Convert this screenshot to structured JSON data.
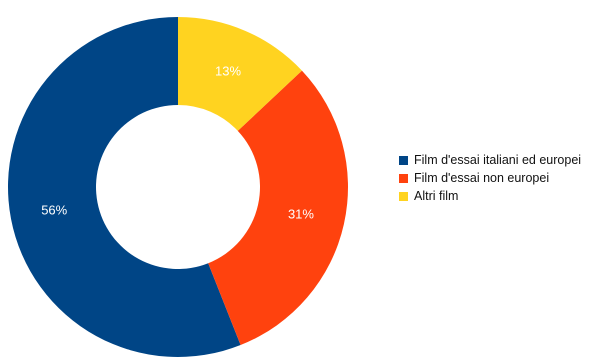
{
  "chart_data": {
    "type": "donut",
    "title": "",
    "legend_position": "right",
    "slices": [
      {
        "label": "Film d'essai italiani ed europei",
        "value": 56,
        "display": "56%",
        "color": "#004586"
      },
      {
        "label": "Film d'essai non europei",
        "value": 31,
        "display": "31%",
        "color": "#ff420e"
      },
      {
        "label": "Altri film",
        "value": 13,
        "display": "13%",
        "color": "#ffd320"
      }
    ]
  }
}
